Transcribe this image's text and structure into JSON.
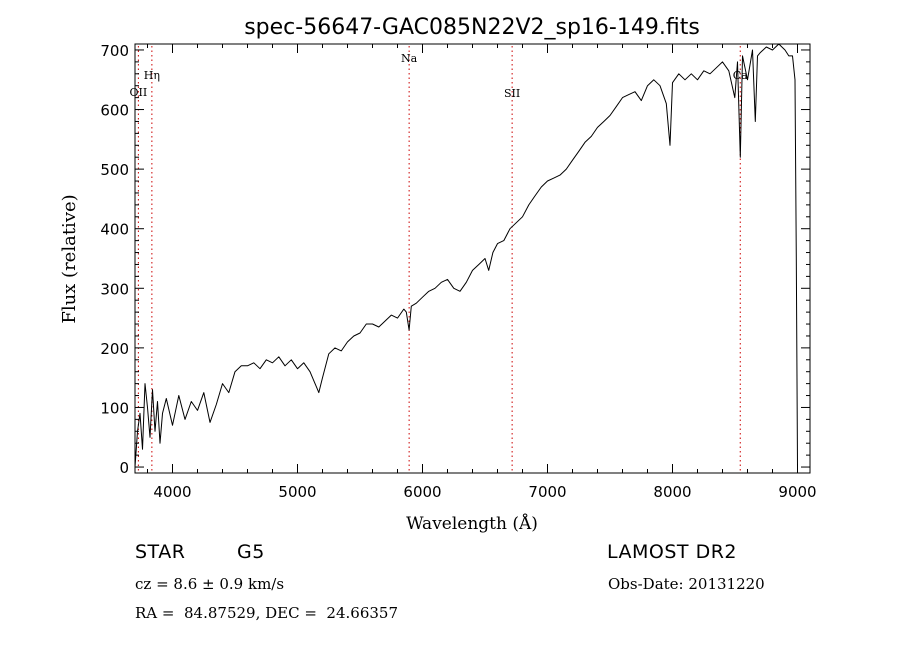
{
  "chart_data": {
    "type": "line",
    "title": "spec-56647-GAC085N22V2_sp16-149.fits",
    "xlabel": "Wavelength (Å)",
    "ylabel": "Flux (relative)",
    "xlim": [
      3700,
      9100
    ],
    "ylim": [
      -10,
      710
    ],
    "xticks": [
      4000,
      5000,
      6000,
      7000,
      8000,
      9000
    ],
    "yticks": [
      0,
      100,
      200,
      300,
      400,
      500,
      600,
      700
    ],
    "grid": false,
    "line_color": "#000000",
    "marker_color": "#cc0000",
    "line_markers": [
      {
        "label": "OII",
        "x": 3727
      },
      {
        "label": "Hη",
        "x": 3835
      },
      {
        "label": "Na",
        "x": 5893
      },
      {
        "label": "SII",
        "x": 6717
      },
      {
        "label": "Ca",
        "x": 8542
      }
    ],
    "series": [
      {
        "x": [
          3700,
          3720,
          3740,
          3760,
          3780,
          3800,
          3820,
          3840,
          3860,
          3880,
          3900,
          3920,
          3950,
          4000,
          4050,
          4100,
          4150,
          4200,
          4250,
          4300,
          4350,
          4400,
          4450,
          4500,
          4550,
          4600,
          4650,
          4700,
          4750,
          4800,
          4850,
          4900,
          4950,
          5000,
          5050,
          5100,
          5150,
          5170,
          5200,
          5250,
          5300,
          5350,
          5400,
          5450,
          5500,
          5550,
          5600,
          5650,
          5700,
          5750,
          5800,
          5850,
          5870,
          5893,
          5910,
          5950,
          6000,
          6050,
          6100,
          6150,
          6200,
          6250,
          6300,
          6350,
          6400,
          6450,
          6500,
          6530,
          6563,
          6600,
          6650,
          6700,
          6750,
          6800,
          6850,
          6900,
          6950,
          7000,
          7050,
          7100,
          7150,
          7200,
          7250,
          7300,
          7350,
          7400,
          7450,
          7500,
          7550,
          7600,
          7650,
          7700,
          7750,
          7800,
          7850,
          7900,
          7950,
          7980,
          8000,
          8050,
          8100,
          8150,
          8200,
          8250,
          8300,
          8350,
          8400,
          8450,
          8498,
          8520,
          8542,
          8560,
          8600,
          8640,
          8662,
          8680,
          8700,
          8750,
          8800,
          8850,
          8900,
          8930,
          8960,
          8980,
          8990,
          9000
        ],
        "values": [
          0,
          60,
          90,
          30,
          140,
          100,
          50,
          130,
          60,
          110,
          40,
          90,
          115,
          70,
          120,
          80,
          110,
          95,
          125,
          75,
          105,
          140,
          125,
          160,
          170,
          170,
          175,
          165,
          180,
          175,
          185,
          170,
          180,
          165,
          175,
          160,
          135,
          125,
          150,
          190,
          200,
          195,
          210,
          220,
          225,
          240,
          240,
          235,
          245,
          255,
          250,
          265,
          260,
          230,
          270,
          275,
          285,
          295,
          300,
          310,
          315,
          300,
          295,
          310,
          330,
          340,
          350,
          330,
          360,
          375,
          380,
          400,
          410,
          420,
          440,
          455,
          470,
          480,
          485,
          490,
          500,
          515,
          530,
          545,
          555,
          570,
          580,
          590,
          605,
          620,
          625,
          630,
          615,
          640,
          650,
          640,
          610,
          540,
          645,
          660,
          650,
          660,
          650,
          665,
          660,
          670,
          680,
          665,
          620,
          680,
          520,
          690,
          650,
          700,
          580,
          690,
          695,
          705,
          700,
          710,
          700,
          690,
          690,
          650,
          350,
          0
        ]
      }
    ]
  },
  "info": {
    "object_type": "STAR",
    "subclass": "G5",
    "survey": "LAMOST DR2",
    "cz": "cz = 8.6 ± 0.9 km/s",
    "obs_date": "Obs-Date: 20131220",
    "coords": "RA =  84.87529, DEC =  24.66357"
  }
}
